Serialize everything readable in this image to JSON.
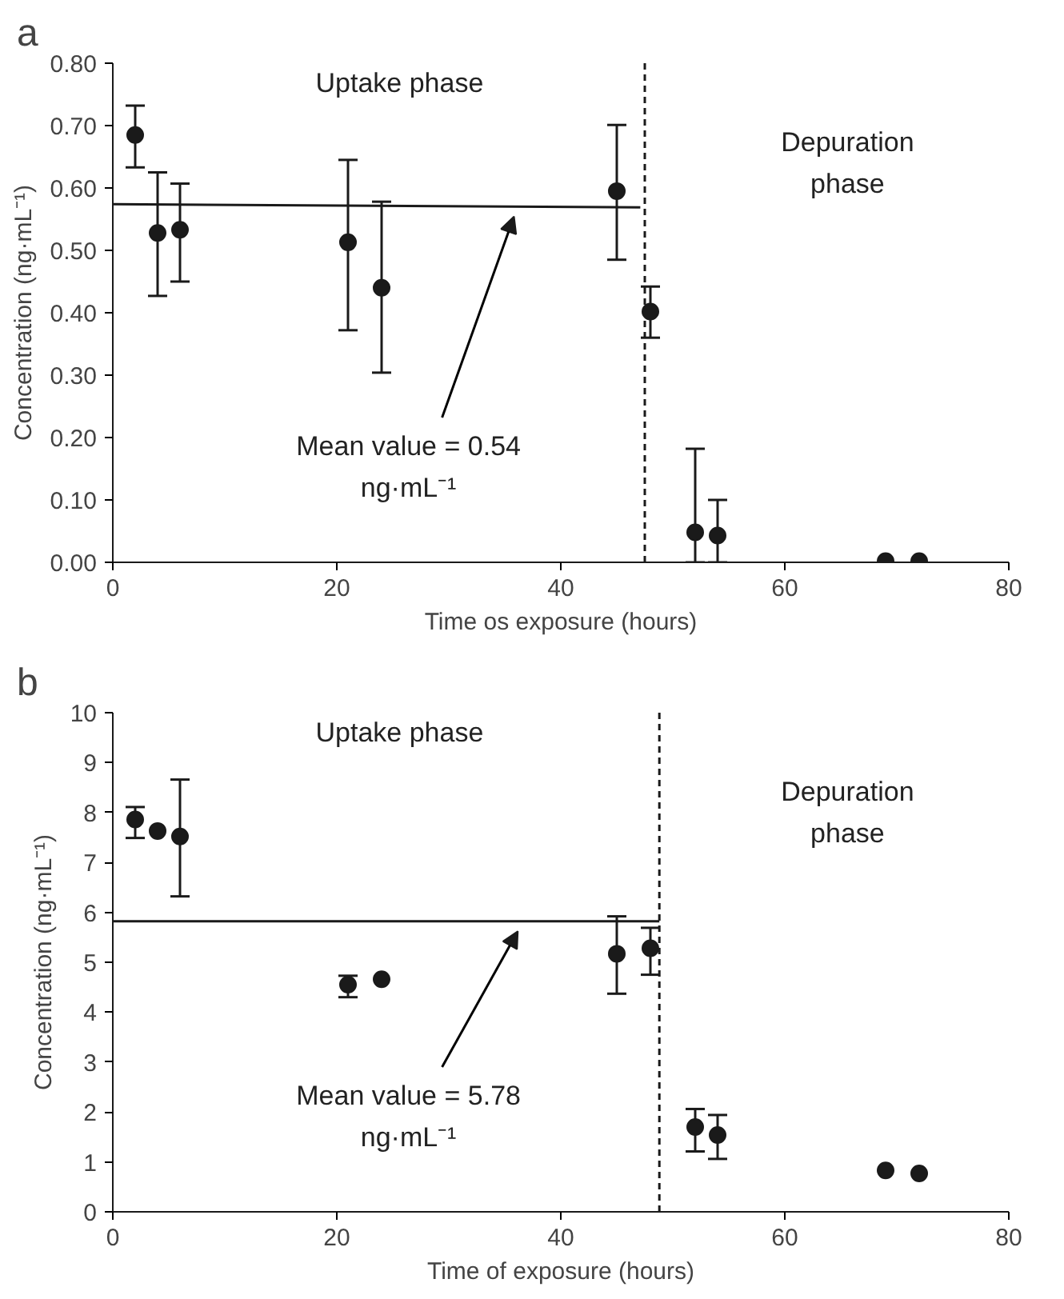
{
  "chart_data": [
    {
      "type": "scatter",
      "title": "a",
      "xlabel": "Time os exposure (hours)",
      "ylabel": "Concentration (ng·mL⁻¹)",
      "xlim": [
        0,
        80
      ],
      "xticks": [
        0,
        20,
        40,
        60,
        80
      ],
      "ylim": [
        0,
        0.8
      ],
      "yticks": [
        {
          "value": 0,
          "label": "0.00"
        },
        {
          "value": 0.1,
          "label": "0.10"
        },
        {
          "value": 0.2,
          "label": "0.20"
        },
        {
          "value": 0.3,
          "label": "0.30"
        },
        {
          "value": 0.4,
          "label": "0.40"
        },
        {
          "value": 0.5,
          "label": "0.50"
        },
        {
          "value": 0.6,
          "label": "0.60"
        },
        {
          "value": 0.7,
          "label": "0.70"
        },
        {
          "value": 0.8,
          "label": "0.80"
        }
      ],
      "grid": false,
      "series": [
        {
          "marker": "circle",
          "color": "#1a1a1a",
          "x": [
            2,
            4,
            6,
            21,
            24,
            45,
            48,
            52,
            54,
            69,
            72
          ],
          "values": [
            0.685,
            0.528,
            0.533,
            0.513,
            0.44,
            0.595,
            0.402,
            0.048,
            0.043,
            0.002,
            0.002
          ],
          "errors": [
            [
              0.633,
              0.732
            ],
            [
              0.427,
              0.625
            ],
            [
              0.45,
              0.607
            ],
            [
              0.372,
              0.645
            ],
            [
              0.304,
              0.578
            ],
            [
              0.485,
              0.701
            ],
            [
              0.36,
              0.442
            ],
            [
              0,
              0.182
            ],
            [
              0,
              0.1
            ],
            null,
            null
          ]
        },
        {
          "type": "line",
          "color": "#1a1a1a",
          "x": [
            0,
            47.1
          ],
          "values": [
            0.574,
            0.569
          ]
        }
      ],
      "ref_lines": [
        {
          "axis": "x",
          "value": 47.5,
          "line_style": "dashed",
          "color": "#1a1a1a"
        }
      ],
      "annotations": [
        "Uptake phase",
        "Depuration\nphase",
        "Mean value = 0.54\nng·mL⁻¹"
      ]
    },
    {
      "type": "scatter",
      "title": "b",
      "xlabel": "Time of exposure (hours)",
      "ylabel": "Concentration (ng·mL⁻¹)",
      "xlim": [
        0,
        80
      ],
      "xticks": [
        0,
        20,
        40,
        60,
        80
      ],
      "ylim": [
        0,
        10
      ],
      "yticks": [
        0,
        1,
        2,
        3,
        4,
        5,
        6,
        7,
        8,
        9,
        10
      ],
      "grid": false,
      "series": [
        {
          "marker": "circle",
          "color": "#1a1a1a",
          "x": [
            2,
            4,
            6,
            21,
            24,
            45,
            48,
            52,
            54,
            69,
            72
          ],
          "values": [
            7.86,
            7.63,
            7.52,
            4.55,
            4.66,
            5.17,
            5.28,
            1.7,
            1.54,
            0.83,
            0.77
          ],
          "errors": [
            [
              7.49,
              8.11
            ],
            null,
            [
              6.32,
              8.66
            ],
            [
              4.3,
              4.73
            ],
            null,
            [
              4.37,
              5.92
            ],
            [
              4.75,
              5.69
            ],
            [
              1.21,
              2.06
            ],
            [
              1.06,
              1.94
            ],
            null,
            null
          ]
        },
        {
          "type": "line",
          "color": "#1a1a1a",
          "x": [
            0,
            48.8
          ],
          "values": [
            5.82,
            5.82
          ]
        }
      ],
      "ref_lines": [
        {
          "axis": "x",
          "value": 48.8,
          "line_style": "dashed",
          "color": "#1a1a1a"
        }
      ],
      "annotations": [
        "Uptake phase",
        "Depuration\nphase",
        "Mean value = 5.78\nng·mL⁻¹"
      ]
    }
  ]
}
